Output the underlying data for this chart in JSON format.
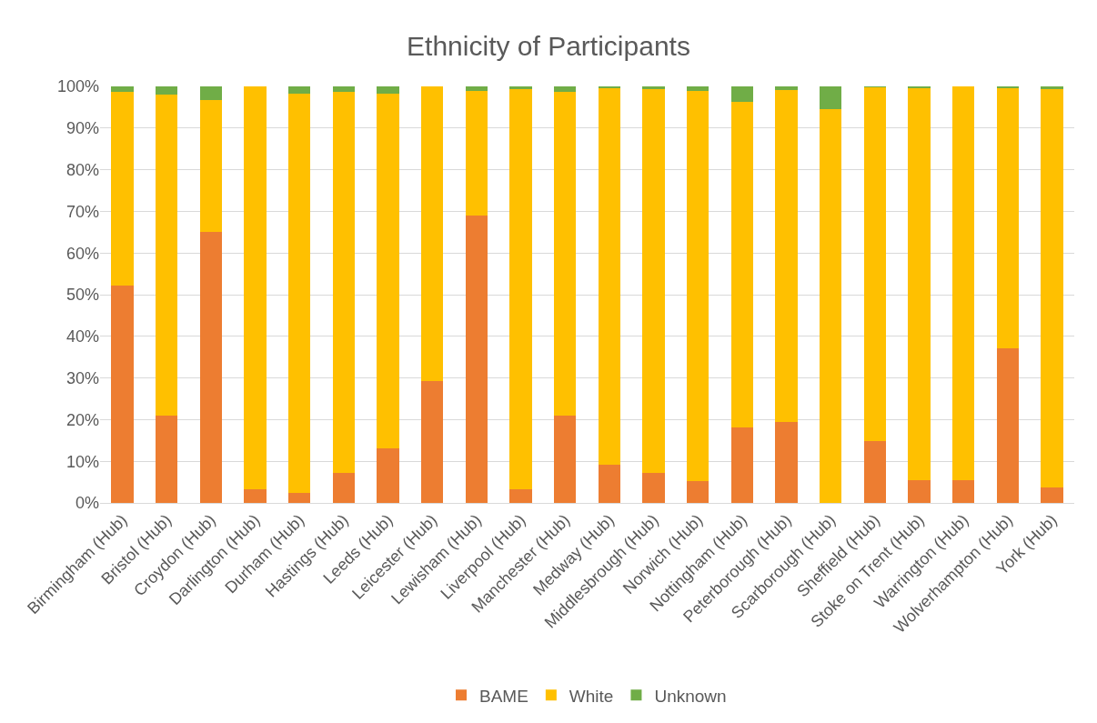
{
  "chart_data": {
    "type": "bar",
    "stacked": true,
    "title": "Ethnicity of Participants",
    "categories": [
      "Birmingham (Hub)",
      "Bristol (Hub)",
      "Croydon (Hub)",
      "Darlington (Hub)",
      "Durham (Hub)",
      "Hastings (Hub)",
      "Leeds (Hub)",
      "Leicester (Hub)",
      "Lewisham (Hub)",
      "Liverpool (Hub)",
      "Manchester (Hub)",
      "Medway (Hub)",
      "Middlesbrough (Hub)",
      "Norwich (Hub)",
      "Nottingham (Hub)",
      "Peterborough (Hub)",
      "Scarborough (Hub)",
      "Sheffield (Hub)",
      "Stoke on Trent (Hub)",
      "Warrington (Hub)",
      "Wolverhampton (Hub)",
      "York (Hub)"
    ],
    "series": [
      {
        "name": "BAME",
        "color": "#ed7d31",
        "values": [
          52.2,
          21,
          65,
          3.3,
          2.5,
          7.3,
          13,
          29.3,
          69,
          3.3,
          21,
          9.2,
          7.3,
          5.2,
          18.2,
          19.4,
          0,
          14.8,
          5.4,
          5.4,
          37.1,
          3.7
        ]
      },
      {
        "name": "White",
        "color": "#ffc000",
        "values": [
          46.4,
          77.1,
          31.7,
          96.7,
          95.8,
          91.5,
          85.3,
          70.7,
          29.9,
          96,
          77.6,
          90.3,
          92,
          93.7,
          78,
          79.8,
          94.5,
          85,
          94.3,
          94.6,
          62.4,
          95.6
        ]
      },
      {
        "name": "Unknown",
        "color": "#70ad47",
        "values": [
          1.4,
          1.9,
          3.3,
          0,
          1.7,
          1.2,
          1.7,
          0,
          1.1,
          0.7,
          1.4,
          0.5,
          0.7,
          1.1,
          3.8,
          0.8,
          5.5,
          0.2,
          0.3,
          0,
          0.5,
          0.7
        ]
      }
    ],
    "ylim": [
      0,
      100
    ],
    "yticks": [
      {
        "value": 0,
        "label": "0%"
      },
      {
        "value": 10,
        "label": "10%"
      },
      {
        "value": 20,
        "label": "20%"
      },
      {
        "value": 30,
        "label": "30%"
      },
      {
        "value": 40,
        "label": "40%"
      },
      {
        "value": 50,
        "label": "50%"
      },
      {
        "value": 60,
        "label": "60%"
      },
      {
        "value": 70,
        "label": "70%"
      },
      {
        "value": 80,
        "label": "80%"
      },
      {
        "value": 90,
        "label": "90%"
      },
      {
        "value": 100,
        "label": "100%"
      }
    ],
    "grid": "y",
    "legend": "bottom"
  }
}
